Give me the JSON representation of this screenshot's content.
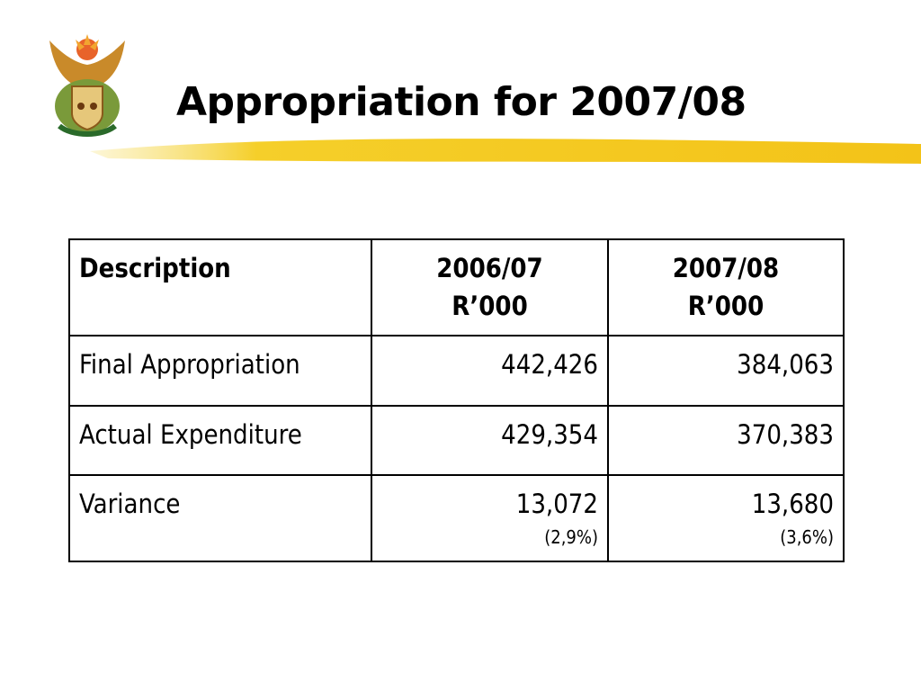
{
  "title": "Appropriation for 2007/08",
  "table": {
    "header": [
      [
        "Description"
      ],
      [
        "2006/07",
        "R’000"
      ],
      [
        "2007/08",
        "R’000"
      ]
    ],
    "rows": [
      [
        [
          "Final Appropriation"
        ],
        [
          "442,426"
        ],
        [
          "384,063"
        ]
      ],
      [
        [
          "Actual Expenditure"
        ],
        [
          "429,354"
        ],
        [
          "370,383"
        ]
      ],
      [
        [
          "Variance"
        ],
        [
          "13,072",
          "(2,9%)"
        ],
        [
          "13,680",
          "(3,6%)"
        ]
      ]
    ]
  }
}
